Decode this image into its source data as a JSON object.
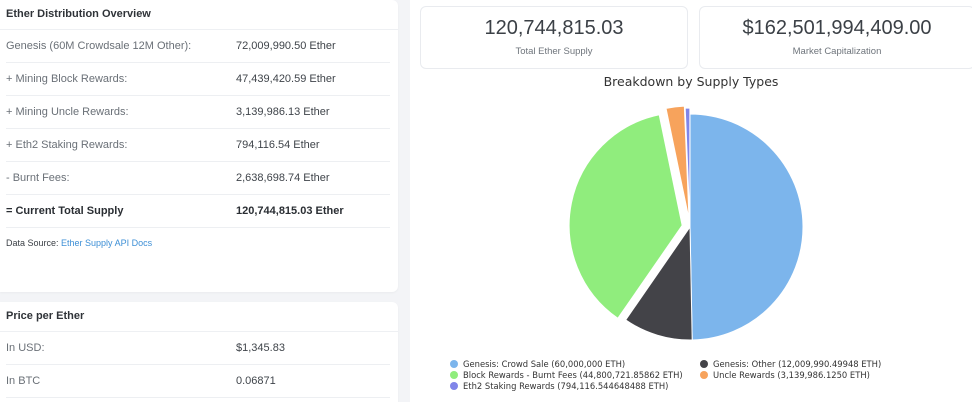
{
  "distribution": {
    "title": "Ether Distribution Overview",
    "rows": [
      {
        "label": "Genesis (60M Crowdsale 12M Other):",
        "value": "72,009,990.50 Ether"
      },
      {
        "label": "+ Mining Block Rewards:",
        "value": "47,439,420.59 Ether"
      },
      {
        "label": "+ Mining Uncle Rewards:",
        "value": "3,139,986.13 Ether"
      },
      {
        "label": "+ Eth2 Staking Rewards:",
        "value": "794,116.54 Ether"
      },
      {
        "label": "- Burnt Fees:",
        "value": "2,638,698.74 Ether"
      },
      {
        "label": "= Current Total Supply",
        "value": "120,744,815.03 Ether"
      }
    ],
    "source_prefix": "Data Source: ",
    "source_link": "Ether Supply API Docs"
  },
  "price": {
    "title": "Price per Ether",
    "rows": [
      {
        "label": "In USD:",
        "value": "$1,345.83"
      },
      {
        "label": "In BTC",
        "value": "0.06871"
      }
    ]
  },
  "stats": {
    "supply": {
      "value": "120,744,815.03",
      "label": "Total Ether Supply"
    },
    "market_cap": {
      "value": "$162,501,994,409.00",
      "label": "Market Capitalization"
    }
  },
  "chart_data": {
    "type": "pie",
    "title": "Breakdown by Supply Types",
    "legend_position": "bottom",
    "categories": [
      "Genesis: Crowd Sale (60,000,000 ETH)",
      "Genesis: Other (12,009,990.49948 ETH)",
      "Block Rewards - Burnt Fees (44,800,721.85862 ETH)",
      "Uncle Rewards (3,139,986.1250 ETH)",
      "Eth2 Staking Rewards (794,116.544648488 ETH)"
    ],
    "values": [
      60000000,
      12009990.49948,
      44800721.85862,
      3139986.125,
      794116.544648488
    ],
    "colors": [
      "#7cb5ec",
      "#434348",
      "#90ed7d",
      "#f7a35c",
      "#8085e9"
    ]
  }
}
